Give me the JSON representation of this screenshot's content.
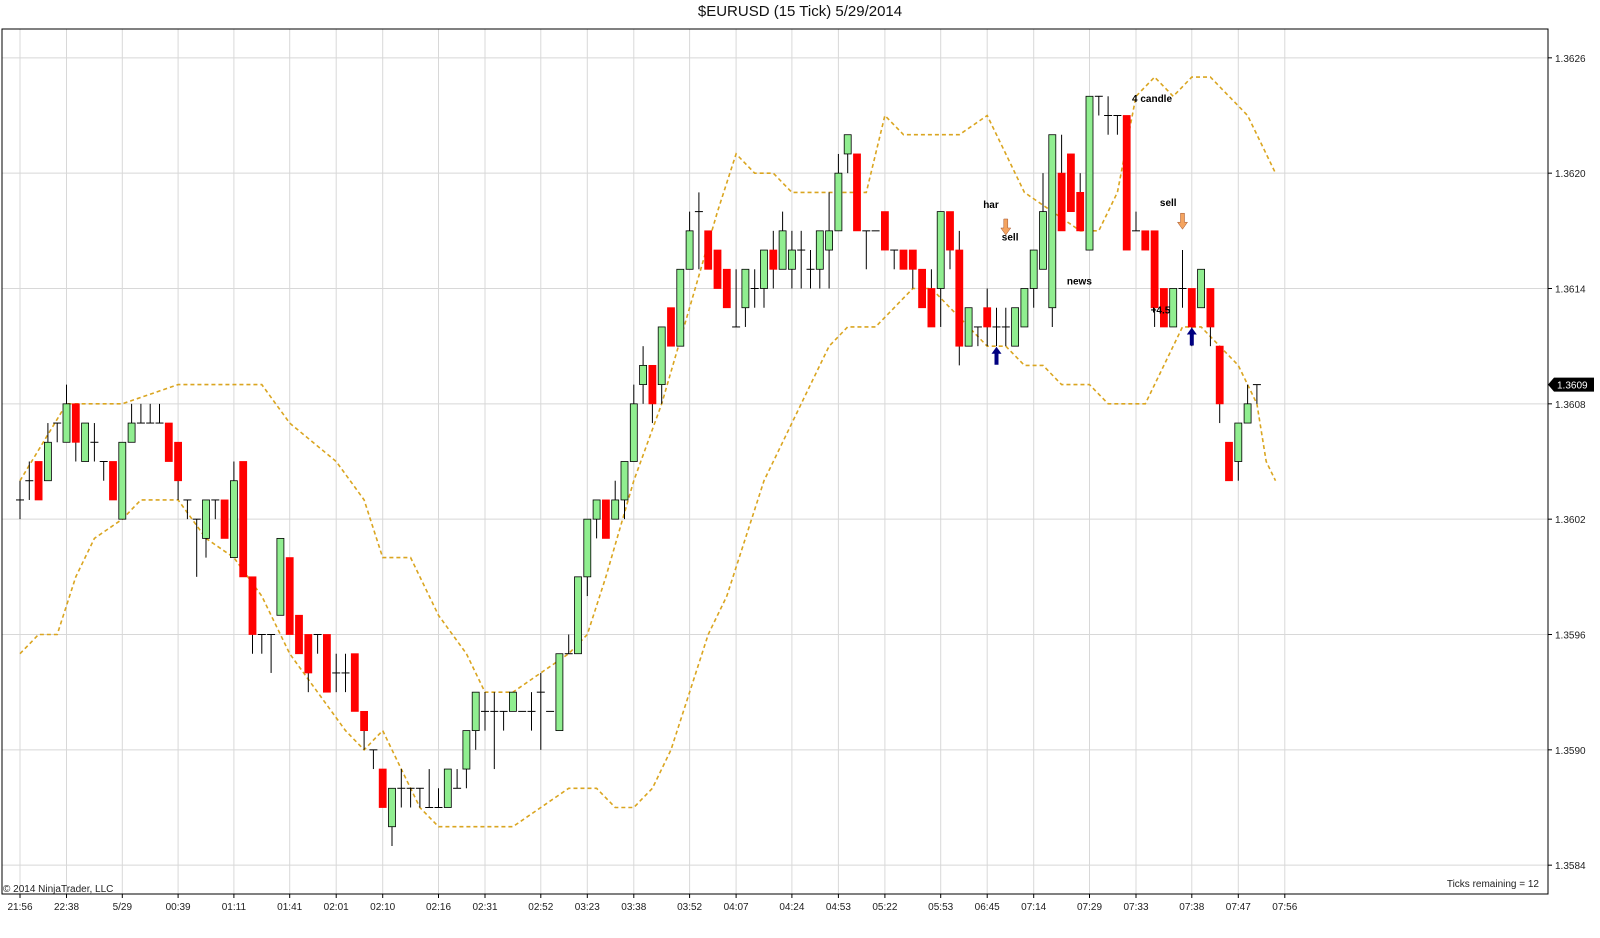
{
  "chart_data": {
    "type": "candlestick",
    "title": "$EURUSD (15 Tick)  5/29/2014",
    "copyright": "© 2014 NinjaTrader, LLC",
    "status_text": "Ticks remaining = 12",
    "last_price_label": "1.3609",
    "last_price": 1.3609,
    "ylim": [
      1.35825,
      1.36275
    ],
    "grid": true,
    "colors": {
      "up": "#90ee90",
      "down": "#ff0000",
      "band": "#daa520",
      "arrow": "#000080",
      "wick": "#000000"
    },
    "y_ticks": [
      "1.3584",
      "1.3590",
      "1.3596",
      "1.3602",
      "1.3608",
      "1.3614",
      "1.3620",
      "1.3626"
    ],
    "x_labels": [
      {
        "i": 0,
        "label": "21:56"
      },
      {
        "i": 5,
        "label": "22:38"
      },
      {
        "i": 11,
        "label": "5/29"
      },
      {
        "i": 17,
        "label": "00:39"
      },
      {
        "i": 23,
        "label": "01:11"
      },
      {
        "i": 29,
        "label": "01:41"
      },
      {
        "i": 34,
        "label": "02:01"
      },
      {
        "i": 39,
        "label": "02:10"
      },
      {
        "i": 45,
        "label": "02:16"
      },
      {
        "i": 50,
        "label": "02:31"
      },
      {
        "i": 56,
        "label": "02:52"
      },
      {
        "i": 61,
        "label": "03:23"
      },
      {
        "i": 66,
        "label": "03:38"
      },
      {
        "i": 72,
        "label": "03:52"
      },
      {
        "i": 77,
        "label": "04:07"
      },
      {
        "i": 83,
        "label": "04:24"
      },
      {
        "i": 88,
        "label": "04:53"
      },
      {
        "i": 93,
        "label": "05:22"
      },
      {
        "i": 99,
        "label": "05:53"
      },
      {
        "i": 104,
        "label": "06:45"
      },
      {
        "i": 109,
        "label": "07:14"
      },
      {
        "i": 115,
        "label": "07:29"
      },
      {
        "i": 120,
        "label": "07:33"
      },
      {
        "i": 126,
        "label": "07:38"
      },
      {
        "i": 131,
        "label": "07:47"
      },
      {
        "i": 136,
        "label": "07:56"
      }
    ],
    "candles": [
      [
        1.3603,
        1.3603,
        1.3602,
        1.3604
      ],
      [
        1.3604,
        1.3604,
        1.3603,
        1.3605
      ],
      [
        1.3605,
        1.3603,
        1.3603,
        1.3605
      ],
      [
        1.3604,
        1.3606,
        1.3604,
        1.3607
      ],
      [
        1.3607,
        1.3607,
        1.3606,
        1.3607
      ],
      [
        1.3606,
        1.3608,
        1.3606,
        1.3609
      ],
      [
        1.3608,
        1.3606,
        1.3605,
        1.3608
      ],
      [
        1.3605,
        1.3607,
        1.3605,
        1.3607
      ],
      [
        1.3606,
        1.3606,
        1.3605,
        1.3607
      ],
      [
        1.3605,
        1.3605,
        1.3604,
        1.3605
      ],
      [
        1.3605,
        1.3603,
        1.3603,
        1.3605
      ],
      [
        1.3602,
        1.3606,
        1.3602,
        1.3606
      ],
      [
        1.3606,
        1.3607,
        1.3606,
        1.3608
      ],
      [
        1.3607,
        1.3607,
        1.3607,
        1.3608
      ],
      [
        1.3607,
        1.3607,
        1.3607,
        1.3608
      ],
      [
        1.3607,
        1.3607,
        1.3607,
        1.3608
      ],
      [
        1.3607,
        1.3605,
        1.3605,
        1.3607
      ],
      [
        1.3606,
        1.3604,
        1.3603,
        1.3606
      ],
      [
        1.3603,
        1.3603,
        1.3602,
        1.3603
      ],
      [
        1.3602,
        1.3602,
        1.3599,
        1.3602
      ],
      [
        1.3601,
        1.3603,
        1.36,
        1.3603
      ],
      [
        1.3603,
        1.3603,
        1.3602,
        1.3603
      ],
      [
        1.3603,
        1.3601,
        1.3601,
        1.3603
      ],
      [
        1.36,
        1.3604,
        1.36,
        1.3605
      ],
      [
        1.3605,
        1.3599,
        1.3599,
        1.3605
      ],
      [
        1.3599,
        1.3596,
        1.3595,
        1.3599
      ],
      [
        1.3596,
        1.3596,
        1.3595,
        1.3596
      ],
      [
        1.3596,
        1.3596,
        1.3594,
        1.3596
      ],
      [
        1.3597,
        1.3601,
        1.3597,
        1.3601
      ],
      [
        1.36,
        1.3596,
        1.3596,
        1.36
      ],
      [
        1.3597,
        1.3595,
        1.3595,
        1.3597
      ],
      [
        1.3596,
        1.3594,
        1.3593,
        1.3596
      ],
      [
        1.3596,
        1.3596,
        1.3595,
        1.3596
      ],
      [
        1.3596,
        1.3593,
        1.3593,
        1.3596
      ],
      [
        1.3594,
        1.3594,
        1.3593,
        1.3595
      ],
      [
        1.3594,
        1.3594,
        1.3593,
        1.3595
      ],
      [
        1.3595,
        1.3592,
        1.3592,
        1.3595
      ],
      [
        1.3592,
        1.3591,
        1.359,
        1.3592
      ],
      [
        1.359,
        1.359,
        1.3589,
        1.359
      ],
      [
        1.3589,
        1.3587,
        1.3587,
        1.3589
      ],
      [
        1.3586,
        1.3588,
        1.3585,
        1.3588
      ],
      [
        1.3588,
        1.3588,
        1.3587,
        1.3589
      ],
      [
        1.3588,
        1.3588,
        1.3587,
        1.3588
      ],
      [
        1.3588,
        1.3588,
        1.3587,
        1.3588
      ],
      [
        1.3587,
        1.3587,
        1.3587,
        1.3589
      ],
      [
        1.3587,
        1.3587,
        1.3587,
        1.3588
      ],
      [
        1.3587,
        1.3589,
        1.3587,
        1.3589
      ],
      [
        1.3588,
        1.3588,
        1.3588,
        1.3589
      ],
      [
        1.3589,
        1.3591,
        1.3588,
        1.3591
      ],
      [
        1.3591,
        1.3593,
        1.359,
        1.3593
      ],
      [
        1.3592,
        1.3592,
        1.3591,
        1.3593
      ],
      [
        1.3592,
        1.3592,
        1.3589,
        1.3593
      ],
      [
        1.3592,
        1.3592,
        1.3591,
        1.3592
      ],
      [
        1.3592,
        1.3593,
        1.3592,
        1.3593
      ],
      [
        1.3592,
        1.3592,
        1.3592,
        1.3592
      ],
      [
        1.3592,
        1.3592,
        1.3591,
        1.3593
      ],
      [
        1.3593,
        1.3593,
        1.359,
        1.3594
      ],
      [
        1.3592,
        1.3592,
        1.3592,
        1.3592
      ],
      [
        1.3591,
        1.3595,
        1.3591,
        1.3595
      ],
      [
        1.3595,
        1.3595,
        1.3595,
        1.3596
      ],
      [
        1.3595,
        1.3599,
        1.3595,
        1.3599
      ],
      [
        1.3599,
        1.3602,
        1.3598,
        1.3602
      ],
      [
        1.3602,
        1.3603,
        1.3601,
        1.3603
      ],
      [
        1.3603,
        1.3601,
        1.3601,
        1.3603
      ],
      [
        1.3602,
        1.3603,
        1.3602,
        1.3604
      ],
      [
        1.3603,
        1.3605,
        1.3602,
        1.3605
      ],
      [
        1.3605,
        1.3608,
        1.3605,
        1.3609
      ],
      [
        1.3609,
        1.361,
        1.3608,
        1.3611
      ],
      [
        1.361,
        1.3608,
        1.3607,
        1.361
      ],
      [
        1.3609,
        1.3612,
        1.3608,
        1.3612
      ],
      [
        1.3613,
        1.3611,
        1.3611,
        1.3613
      ],
      [
        1.3611,
        1.3615,
        1.3611,
        1.3615
      ],
      [
        1.3615,
        1.3617,
        1.3615,
        1.3618
      ],
      [
        1.3618,
        1.3618,
        1.3615,
        1.3619
      ],
      [
        1.3617,
        1.3615,
        1.3615,
        1.3617
      ],
      [
        1.3616,
        1.3614,
        1.3614,
        1.3616
      ],
      [
        1.3615,
        1.3613,
        1.3613,
        1.3615
      ],
      [
        1.3612,
        1.3612,
        1.3612,
        1.3615
      ],
      [
        1.3613,
        1.3615,
        1.3612,
        1.3615
      ],
      [
        1.3614,
        1.3614,
        1.3613,
        1.3615
      ],
      [
        1.3614,
        1.3616,
        1.3613,
        1.3616
      ],
      [
        1.3616,
        1.3615,
        1.3614,
        1.3617
      ],
      [
        1.3615,
        1.3617,
        1.3615,
        1.3618
      ],
      [
        1.3615,
        1.3616,
        1.3614,
        1.3617
      ],
      [
        1.3616,
        1.3616,
        1.3614,
        1.3617
      ],
      [
        1.3615,
        1.3615,
        1.3614,
        1.3616
      ],
      [
        1.3615,
        1.3617,
        1.3614,
        1.3617
      ],
      [
        1.3616,
        1.3617,
        1.3614,
        1.3619
      ],
      [
        1.3617,
        1.362,
        1.3617,
        1.3621
      ],
      [
        1.3621,
        1.3622,
        1.362,
        1.3622
      ],
      [
        1.3621,
        1.3617,
        1.3617,
        1.3621
      ],
      [
        1.3617,
        1.3617,
        1.3615,
        1.3617
      ],
      [
        1.3617,
        1.3617,
        1.3617,
        1.3617
      ],
      [
        1.3618,
        1.3616,
        1.3616,
        1.3618
      ],
      [
        1.3616,
        1.3616,
        1.3615,
        1.3616
      ],
      [
        1.3616,
        1.3615,
        1.3615,
        1.3616
      ],
      [
        1.3616,
        1.3615,
        1.3614,
        1.3616
      ],
      [
        1.3615,
        1.3613,
        1.3613,
        1.3615
      ],
      [
        1.3614,
        1.3612,
        1.3612,
        1.3615
      ],
      [
        1.3614,
        1.3618,
        1.3612,
        1.3618
      ],
      [
        1.3618,
        1.3616,
        1.3615,
        1.3618
      ],
      [
        1.3616,
        1.3611,
        1.361,
        1.3617
      ],
      [
        1.3611,
        1.3613,
        1.3611,
        1.3613
      ],
      [
        1.3612,
        1.3612,
        1.3611,
        1.3612
      ],
      [
        1.3613,
        1.3612,
        1.3611,
        1.3614
      ],
      [
        1.3612,
        1.3612,
        1.3611,
        1.3613
      ],
      [
        1.3612,
        1.3612,
        1.3611,
        1.3613
      ],
      [
        1.3611,
        1.3613,
        1.3611,
        1.3613
      ],
      [
        1.3612,
        1.3614,
        1.3612,
        1.3614
      ],
      [
        1.3614,
        1.3616,
        1.3613,
        1.3616
      ],
      [
        1.3615,
        1.3618,
        1.3615,
        1.362
      ],
      [
        1.3613,
        1.3622,
        1.3612,
        1.3622
      ],
      [
        1.362,
        1.3617,
        1.3617,
        1.3622
      ],
      [
        1.3621,
        1.3618,
        1.3618,
        1.3621
      ],
      [
        1.3619,
        1.3617,
        1.3617,
        1.362
      ],
      [
        1.3616,
        1.3624,
        1.3616,
        1.3624
      ],
      [
        1.3624,
        1.3624,
        1.3623,
        1.3624
      ],
      [
        1.3623,
        1.3623,
        1.3622,
        1.3624
      ],
      [
        1.3623,
        1.3623,
        1.3622,
        1.3623
      ],
      [
        1.3623,
        1.3616,
        1.3616,
        1.3623
      ],
      [
        1.3617,
        1.3617,
        1.3617,
        1.3618
      ],
      [
        1.3617,
        1.3616,
        1.3616,
        1.3617
      ],
      [
        1.3617,
        1.3613,
        1.3612,
        1.3617
      ],
      [
        1.3614,
        1.3612,
        1.3612,
        1.3614
      ],
      [
        1.3612,
        1.3614,
        1.3612,
        1.3614
      ],
      [
        1.3614,
        1.3614,
        1.3613,
        1.3616
      ],
      [
        1.3614,
        1.3612,
        1.3611,
        1.3614
      ],
      [
        1.3613,
        1.3615,
        1.3613,
        1.3615
      ],
      [
        1.3614,
        1.3612,
        1.3611,
        1.3614
      ],
      [
        1.3611,
        1.3608,
        1.3607,
        1.3611
      ],
      [
        1.3606,
        1.3604,
        1.3604,
        1.3606
      ],
      [
        1.3605,
        1.3607,
        1.3604,
        1.3607
      ],
      [
        1.3607,
        1.3608,
        1.3607,
        1.3609
      ],
      [
        1.3609,
        1.3609,
        1.3608,
        1.3609
      ]
    ],
    "bollinger_upper": [
      [
        0,
        1.3604
      ],
      [
        5,
        1.3608
      ],
      [
        11,
        1.3608
      ],
      [
        17,
        1.3609
      ],
      [
        23,
        1.3609
      ],
      [
        26,
        1.3609
      ],
      [
        29,
        1.3607
      ],
      [
        34,
        1.3605
      ],
      [
        37,
        1.3603
      ],
      [
        39,
        1.36
      ],
      [
        42,
        1.36
      ],
      [
        45,
        1.3597
      ],
      [
        48,
        1.3595
      ],
      [
        50,
        1.3593
      ],
      [
        53,
        1.3593
      ],
      [
        56,
        1.3594
      ],
      [
        59,
        1.3595
      ],
      [
        61,
        1.3596
      ],
      [
        63,
        1.3599
      ],
      [
        66,
        1.3604
      ],
      [
        69,
        1.3608
      ],
      [
        72,
        1.3613
      ],
      [
        75,
        1.3618
      ],
      [
        77,
        1.3621
      ],
      [
        79,
        1.362
      ],
      [
        81,
        1.362
      ],
      [
        83,
        1.3619
      ],
      [
        86,
        1.3619
      ],
      [
        88,
        1.3619
      ],
      [
        91,
        1.3619
      ],
      [
        93,
        1.3623
      ],
      [
        95,
        1.3622
      ],
      [
        98,
        1.3622
      ],
      [
        101,
        1.3622
      ],
      [
        104,
        1.3623
      ],
      [
        106,
        1.3621
      ],
      [
        108,
        1.3619
      ],
      [
        111,
        1.3618
      ],
      [
        114,
        1.3617
      ],
      [
        116,
        1.3617
      ],
      [
        118,
        1.3619
      ],
      [
        120,
        1.3624
      ],
      [
        122,
        1.3625
      ],
      [
        124,
        1.3624
      ],
      [
        126,
        1.3625
      ],
      [
        128,
        1.3625
      ],
      [
        130,
        1.3624
      ],
      [
        132,
        1.3623
      ],
      [
        134,
        1.3621
      ],
      [
        135,
        1.362
      ]
    ],
    "bollinger_lower": [
      [
        0,
        1.3595
      ],
      [
        2,
        1.3596
      ],
      [
        4,
        1.3596
      ],
      [
        6,
        1.3599
      ],
      [
        8,
        1.3601
      ],
      [
        11,
        1.3602
      ],
      [
        13,
        1.3603
      ],
      [
        15,
        1.3603
      ],
      [
        17,
        1.3603
      ],
      [
        20,
        1.3601
      ],
      [
        23,
        1.36
      ],
      [
        26,
        1.3598
      ],
      [
        29,
        1.3595
      ],
      [
        32,
        1.3593
      ],
      [
        35,
        1.3591
      ],
      [
        37,
        1.359
      ],
      [
        39,
        1.3591
      ],
      [
        41,
        1.3589
      ],
      [
        43,
        1.3587
      ],
      [
        45,
        1.3586
      ],
      [
        49,
        1.3586
      ],
      [
        53,
        1.3586
      ],
      [
        56,
        1.3587
      ],
      [
        59,
        1.3588
      ],
      [
        62,
        1.3588
      ],
      [
        64,
        1.3587
      ],
      [
        66,
        1.3587
      ],
      [
        68,
        1.3588
      ],
      [
        70,
        1.359
      ],
      [
        72,
        1.3593
      ],
      [
        74,
        1.3596
      ],
      [
        76,
        1.3598
      ],
      [
        78,
        1.3601
      ],
      [
        80,
        1.3604
      ],
      [
        82,
        1.3606
      ],
      [
        85,
        1.3609
      ],
      [
        87,
        1.3611
      ],
      [
        89,
        1.3612
      ],
      [
        92,
        1.3612
      ],
      [
        94,
        1.3613
      ],
      [
        96,
        1.3614
      ],
      [
        98,
        1.3614
      ],
      [
        100,
        1.3613
      ],
      [
        102,
        1.3612
      ],
      [
        104,
        1.3611
      ],
      [
        106,
        1.3611
      ],
      [
        108,
        1.361
      ],
      [
        110,
        1.361
      ],
      [
        112,
        1.3609
      ],
      [
        115,
        1.3609
      ],
      [
        117,
        1.3608
      ],
      [
        119,
        1.3608
      ],
      [
        121,
        1.3608
      ],
      [
        123,
        1.361
      ],
      [
        125,
        1.3612
      ],
      [
        127,
        1.3612
      ],
      [
        129,
        1.3611
      ],
      [
        131,
        1.361
      ],
      [
        133,
        1.3608
      ],
      [
        134,
        1.3605
      ],
      [
        135,
        1.3604
      ]
    ],
    "annotations": [
      {
        "text": "har",
        "i": 104,
        "y": 1.36182
      },
      {
        "text": "sell",
        "i": 106,
        "y": 1.36165
      },
      {
        "text": "news",
        "i": 113,
        "y": 1.36142
      },
      {
        "text": "4 candle",
        "i": 120,
        "y": 1.36237
      },
      {
        "text": "sell",
        "i": 123,
        "y": 1.36183
      },
      {
        "text": "+4.5",
        "i": 122,
        "y": 1.36127
      }
    ],
    "markers": [
      {
        "type": "up-arrow",
        "i": 105,
        "y": 1.36105,
        "color": "#000080"
      },
      {
        "type": "up-arrow",
        "i": 126,
        "y": 1.36115,
        "color": "#000080"
      },
      {
        "type": "down-arrow",
        "i": 106,
        "y": 1.36172,
        "color": "#f4a460"
      },
      {
        "type": "down-arrow",
        "i": 125,
        "y": 1.36175,
        "color": "#f4a460"
      }
    ]
  }
}
